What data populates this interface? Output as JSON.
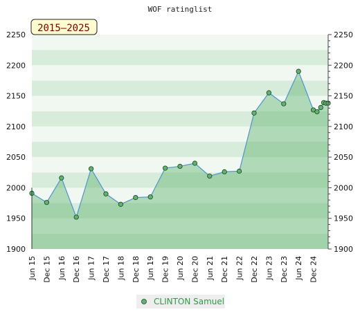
{
  "chart_data": {
    "type": "area",
    "title": "WOF ratinglist",
    "badge": "2015–2025",
    "xlabel": "",
    "ylabel": "",
    "ylim": [
      1900,
      2250
    ],
    "y_ticks": [
      1900,
      1950,
      2000,
      2050,
      2100,
      2150,
      2200,
      2250
    ],
    "x_ticks": [
      "Jun 15",
      "Dec 15",
      "Jun 16",
      "Dec 16",
      "Jun 17",
      "Dec 17",
      "Jun 18",
      "Dec 18",
      "Jun 19",
      "Dec 19",
      "Jun 20",
      "Dec 20",
      "Jun 21",
      "Dec 21",
      "Jun 22",
      "Dec 22",
      "Jun 23",
      "Dec 23",
      "Jun 24",
      "Dec 24"
    ],
    "series": [
      {
        "name": "CLINTON Samuel",
        "points": [
          {
            "x": 0,
            "y": 1991
          },
          {
            "x": 1,
            "y": 1976
          },
          {
            "x": 2,
            "y": 2016
          },
          {
            "x": 3,
            "y": 1952
          },
          {
            "x": 4,
            "y": 2031
          },
          {
            "x": 5,
            "y": 1990
          },
          {
            "x": 6,
            "y": 1973
          },
          {
            "x": 7,
            "y": 1984
          },
          {
            "x": 8,
            "y": 1985
          },
          {
            "x": 9,
            "y": 2032
          },
          {
            "x": 10,
            "y": 2035
          },
          {
            "x": 11,
            "y": 2040
          },
          {
            "x": 12,
            "y": 2019
          },
          {
            "x": 13,
            "y": 2026
          },
          {
            "x": 14,
            "y": 2027
          },
          {
            "x": 15,
            "y": 2122
          },
          {
            "x": 16,
            "y": 2155
          },
          {
            "x": 17,
            "y": 2137
          },
          {
            "x": 18,
            "y": 2190
          },
          {
            "x": 19,
            "y": 2127
          },
          {
            "x": 19.25,
            "y": 2124
          },
          {
            "x": 19.5,
            "y": 2131
          },
          {
            "x": 19.7,
            "y": 2139
          },
          {
            "x": 19.85,
            "y": 2138
          },
          {
            "x": 20.0,
            "y": 2138
          }
        ]
      }
    ],
    "grid": true,
    "legend_position": "bottom"
  },
  "colors": {
    "band_a": "#d8ecdb",
    "band_b": "#f1f8f2",
    "band_mid_a": "#b5dcc0",
    "band_mid_b": "#c9e5cf",
    "area_fill": "#5fb36f",
    "line": "#4f93cf",
    "marker_fill": "#5fb36f",
    "marker_stroke": "#1d3d22",
    "badge_fill": "#fffccf",
    "legend_bg": "#eeeeee"
  }
}
